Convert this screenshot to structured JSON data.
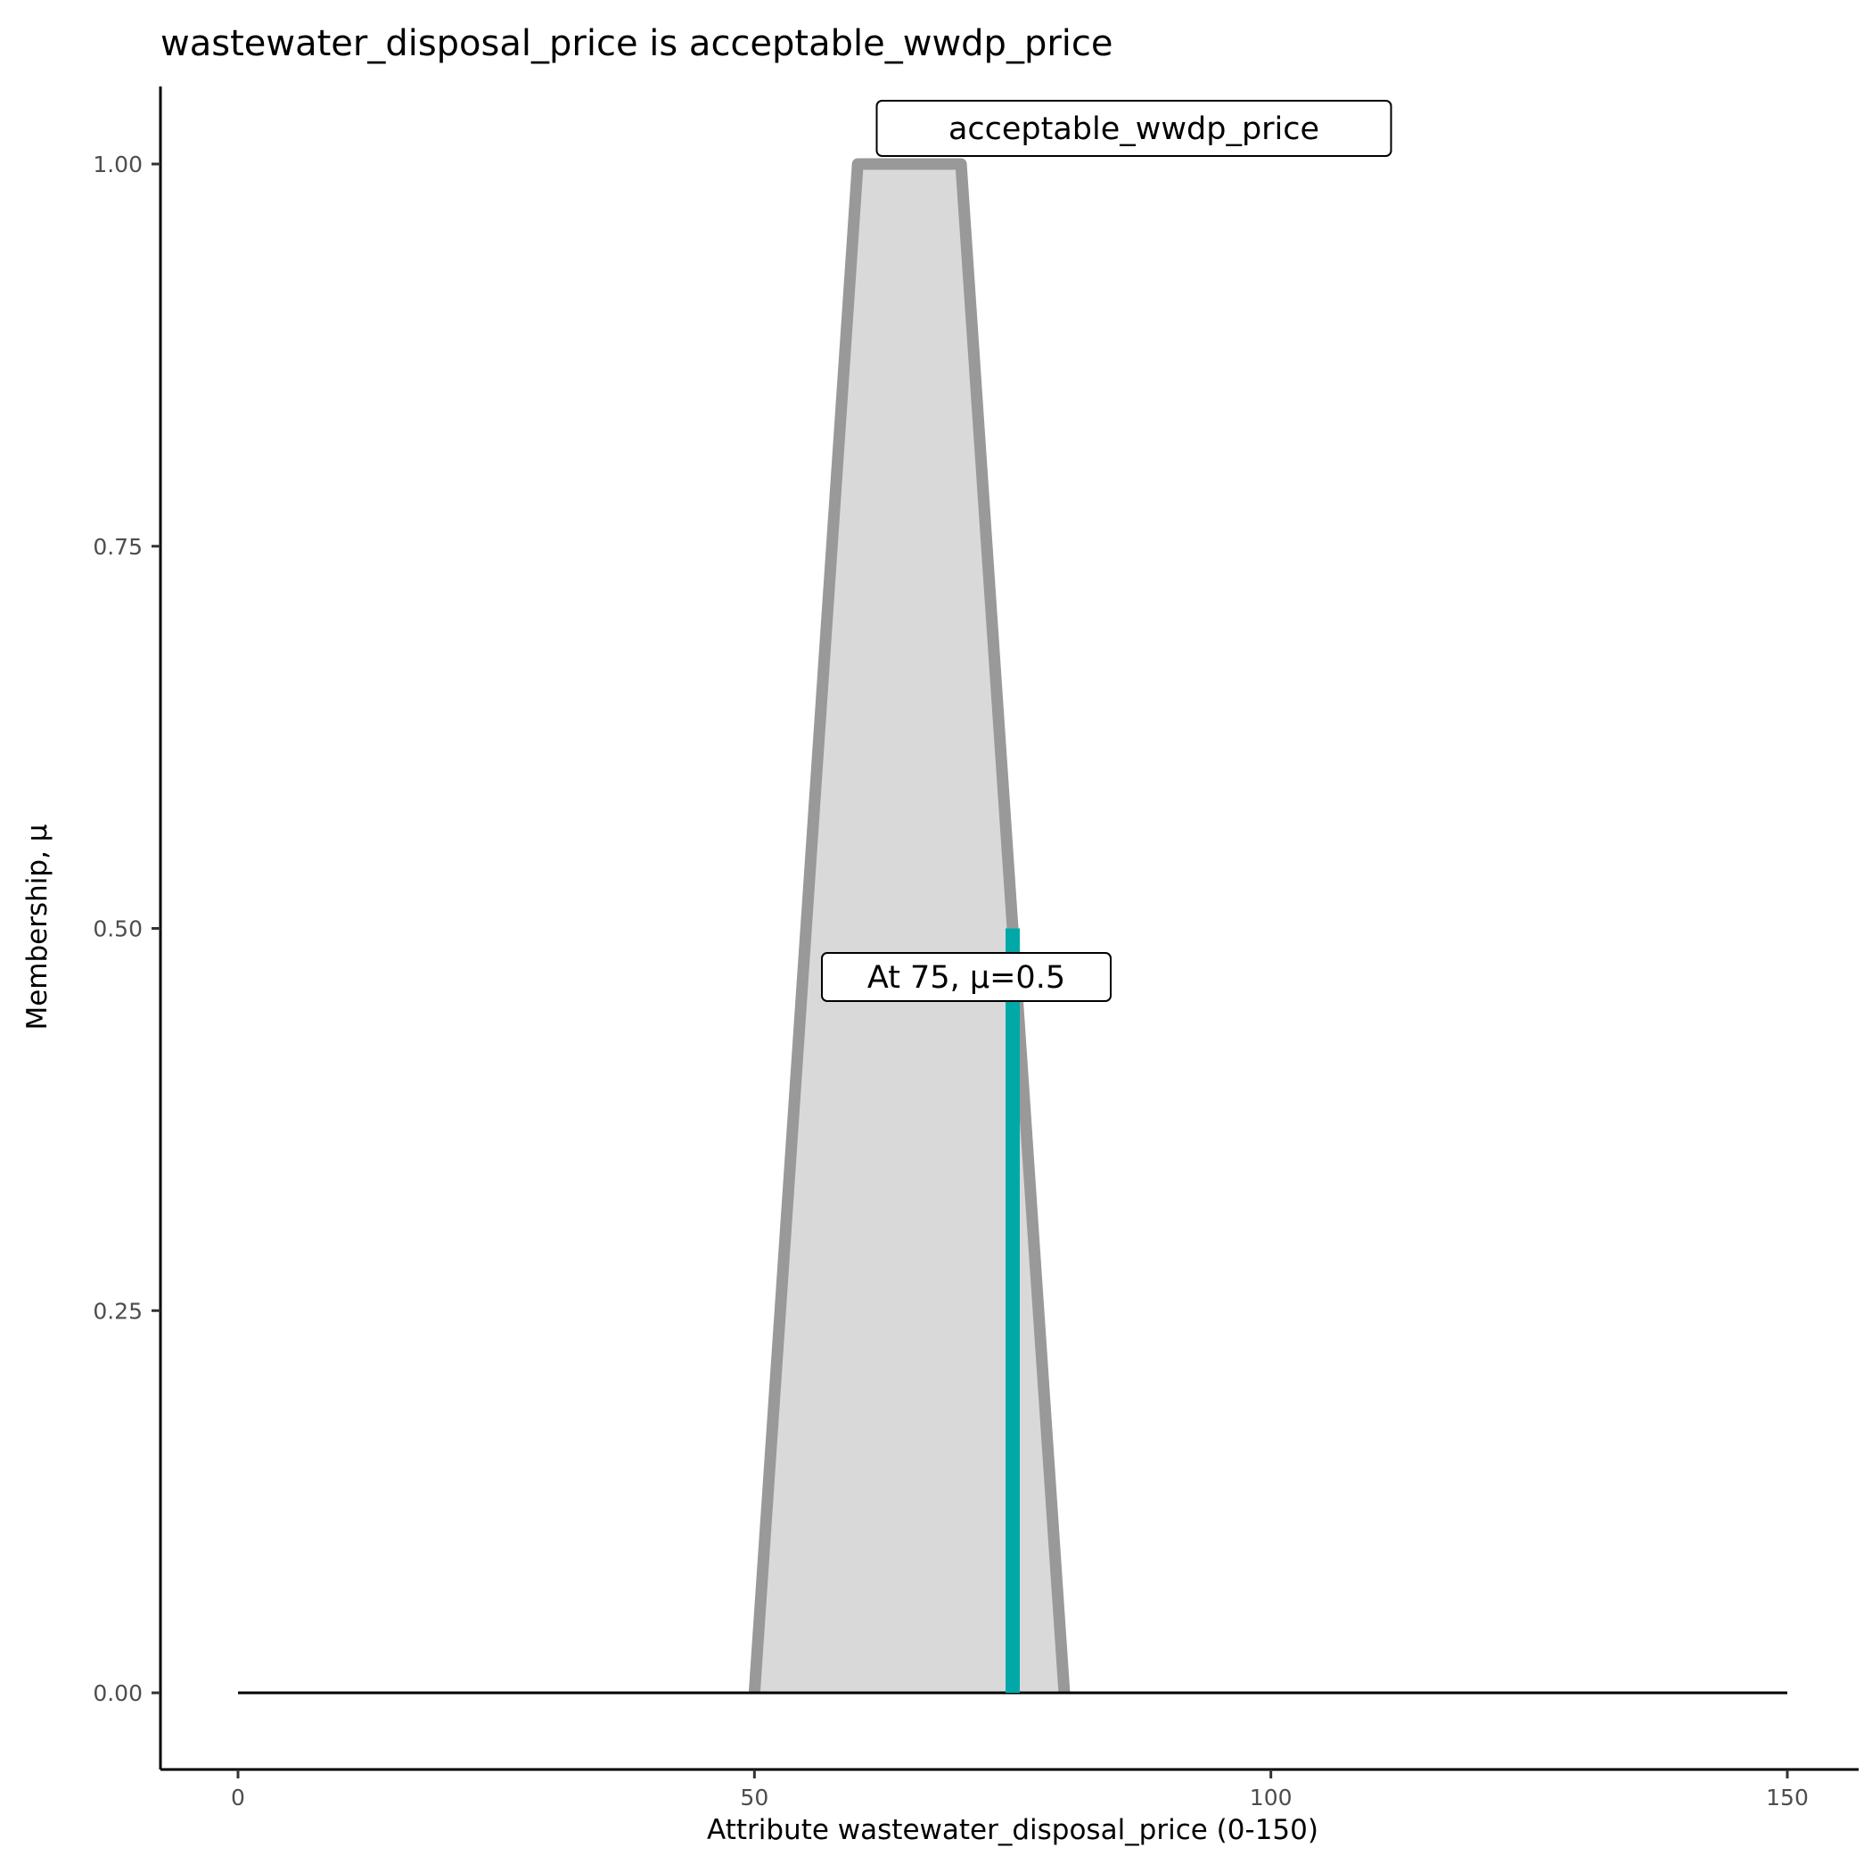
{
  "chart_data": {
    "type": "area",
    "title": "wastewater_disposal_price is acceptable_wwdp_price",
    "xlabel": "Attribute wastewater_disposal_price (0-150)",
    "ylabel": "Membership, μ",
    "xlim": [
      0,
      150
    ],
    "ylim": [
      0,
      1
    ],
    "x_ticks": [
      0,
      50,
      100,
      150
    ],
    "x_tick_labels": [
      "0",
      "50",
      "100",
      "150"
    ],
    "y_ticks": [
      0,
      0.25,
      0.5,
      0.75,
      1.0
    ],
    "y_tick_labels": [
      "0.00",
      "0.25",
      "0.50",
      "0.75",
      "1.00"
    ],
    "grid": false,
    "series": [
      {
        "name": "acceptable_wwdp_price",
        "x": [
          50,
          60,
          70,
          80
        ],
        "y": [
          0,
          1,
          1,
          0
        ],
        "fill_color": "#d9d9d9",
        "line_color": "#999999"
      }
    ],
    "baseline": {
      "x": [
        0,
        150
      ],
      "y": 0,
      "color": "#000000"
    },
    "marker": {
      "x": 75,
      "y": 0.5,
      "color": "#00a9a8"
    },
    "annotations": [
      {
        "text": "acceptable_wwdp_price",
        "x": 65,
        "y": 1.0
      },
      {
        "text": "At 75, μ=0.5",
        "x": 75,
        "y": 0.5
      }
    ]
  }
}
